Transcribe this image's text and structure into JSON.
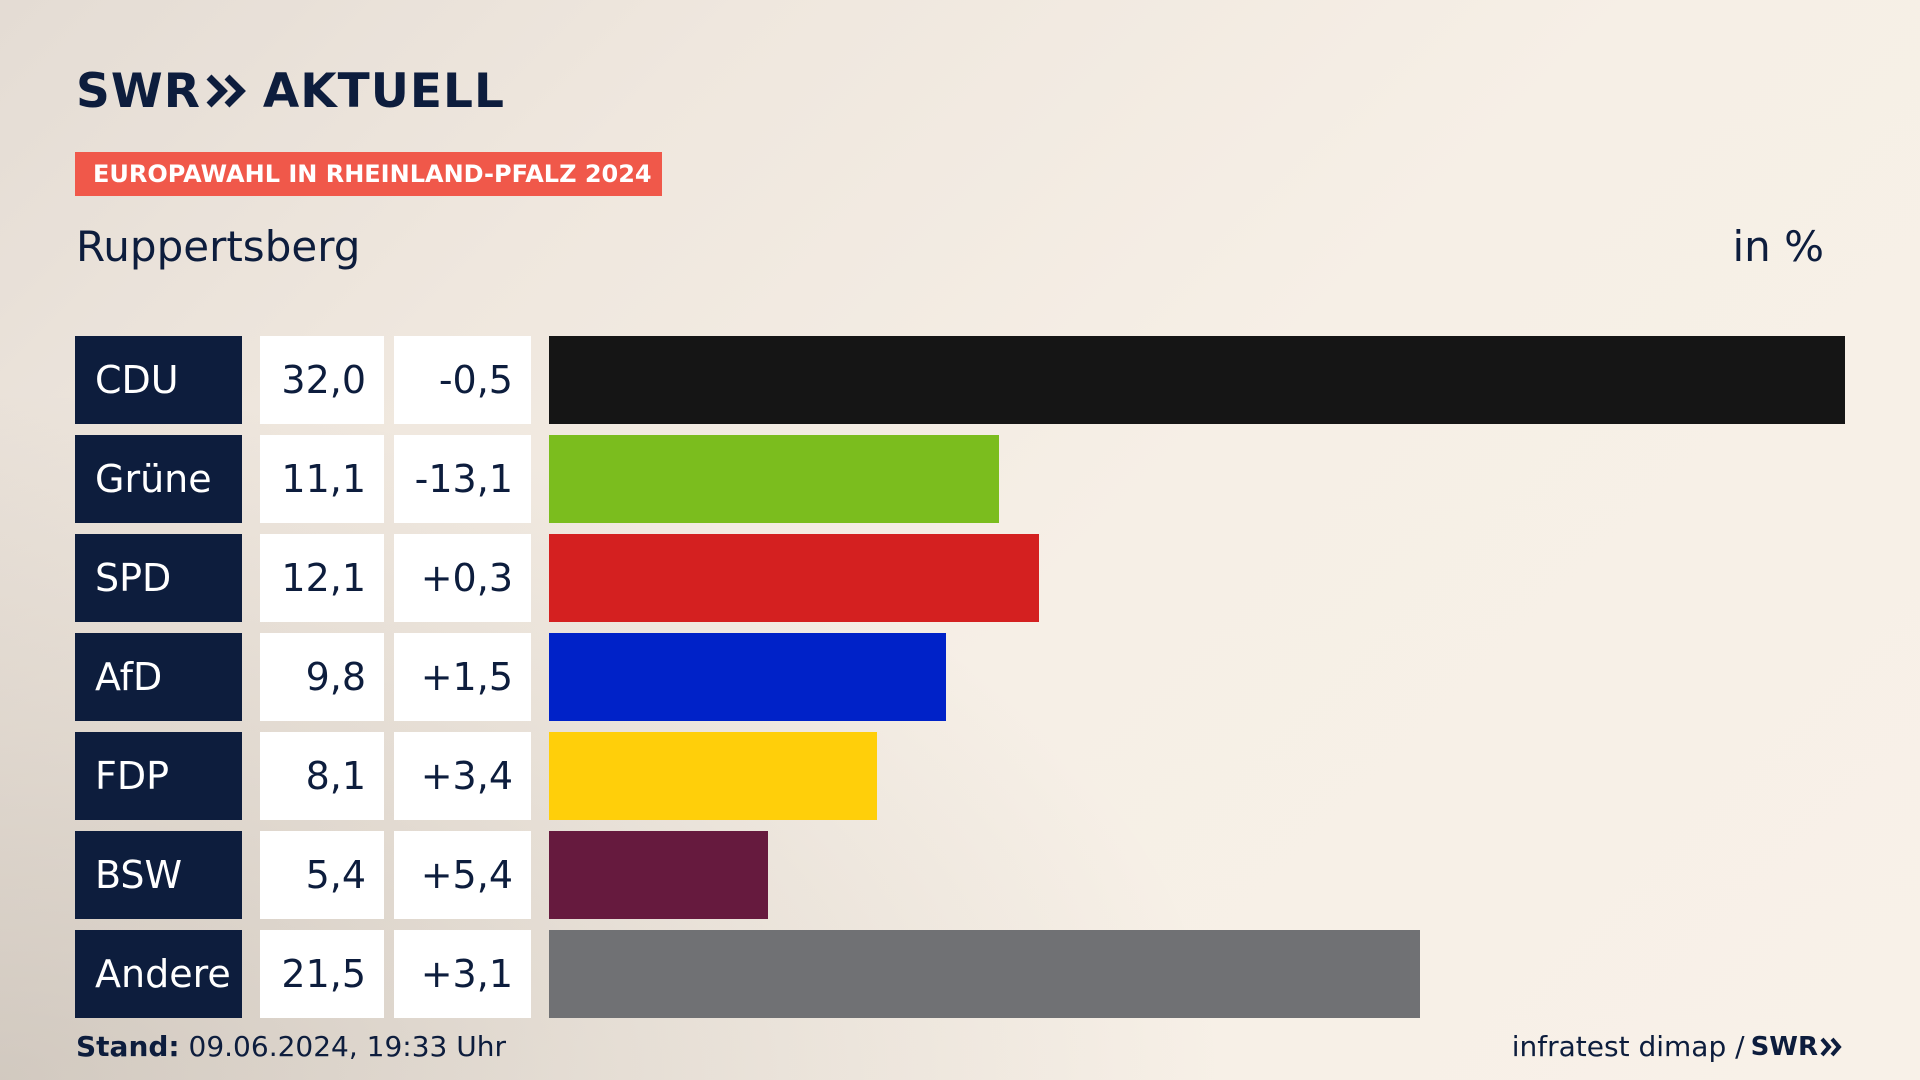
{
  "brand": {
    "logo_left": "SWR",
    "logo_right": "AKTUELL"
  },
  "header": {
    "badge": "EUROPAWAHL IN RHEINLAND-PFALZ 2024",
    "location": "Ruppertsberg",
    "unit": "in %"
  },
  "chart_data": {
    "type": "bar",
    "orientation": "horizontal",
    "title": "Ruppertsberg",
    "unit": "in %",
    "categories": [
      "CDU",
      "Grüne",
      "SPD",
      "AfD",
      "FDP",
      "BSW",
      "Andere"
    ],
    "values": [
      32.0,
      11.1,
      12.1,
      9.8,
      8.1,
      5.4,
      21.5
    ],
    "value_labels": [
      "32,0",
      "11,1",
      "12,1",
      "9,8",
      "8,1",
      "5,4",
      "21,5"
    ],
    "changes": [
      -0.5,
      -13.1,
      0.3,
      1.5,
      3.4,
      5.4,
      3.1
    ],
    "change_labels": [
      "-0,5",
      "-13,1",
      "+0,3",
      "+1,5",
      "+3,4",
      "+5,4",
      "+3,1"
    ],
    "colors": [
      "#151515",
      "#7bbd1e",
      "#d42020",
      "#0022c8",
      "#ffcf0a",
      "#661a3e",
      "#707174"
    ],
    "xlim": [
      0,
      32.0
    ],
    "grid": false
  },
  "footer": {
    "stand_label": "Stand:",
    "stand_value": "09.06.2024, 19:33 Uhr",
    "source": "infratest dimap /",
    "source_logo": "SWR"
  }
}
